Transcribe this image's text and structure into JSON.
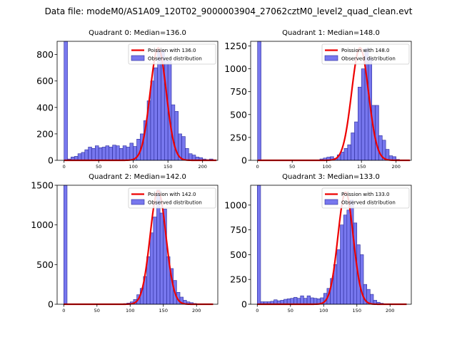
{
  "figure": {
    "suptitle": "Data file: modeM0/AS1A09_120T02_9000003904_27062cztM0_level2_quad_clean.evt"
  },
  "style": {
    "bar_fill": "#7777ee",
    "bar_edge": "#2a2a9a",
    "fit_color": "#ee0000"
  },
  "chart_data": [
    {
      "type": "bar",
      "title": "Quadrant 0: Median=136.0",
      "bin_width": 5,
      "xlim": [
        -10,
        222
      ],
      "ylim": [
        0,
        900
      ],
      "xticks": [
        0,
        50,
        100,
        150,
        200
      ],
      "yticks": [
        0,
        200,
        400,
        600,
        800
      ],
      "legend_position": "top-right",
      "legend": [
        "Poission with 136.0",
        "Observed distribution"
      ],
      "bins_left": [
        0,
        5,
        10,
        15,
        20,
        25,
        30,
        35,
        40,
        45,
        50,
        55,
        60,
        65,
        70,
        75,
        80,
        85,
        90,
        95,
        100,
        105,
        110,
        115,
        120,
        125,
        130,
        135,
        140,
        145,
        150,
        155,
        160,
        165,
        170,
        175,
        180,
        185,
        190,
        195,
        200,
        205,
        210,
        215
      ],
      "counts": [
        900,
        10,
        25,
        30,
        50,
        60,
        80,
        100,
        90,
        110,
        95,
        100,
        110,
        100,
        115,
        110,
        90,
        110,
        100,
        130,
        105,
        160,
        200,
        300,
        450,
        600,
        700,
        830,
        830,
        760,
        750,
        420,
        370,
        200,
        180,
        90,
        50,
        40,
        25,
        20,
        10,
        5,
        10,
        2
      ],
      "fit": {
        "label": "Poission with 136.0",
        "mean": 136.0,
        "peak": 850,
        "x_range": [
          0,
          220
        ]
      }
    },
    {
      "type": "bar",
      "title": "Quadrant 1: Median=148.0",
      "bin_width": 5,
      "xlim": [
        -10,
        222
      ],
      "ylim": [
        0,
        1300
      ],
      "xticks": [
        0,
        50,
        100,
        150,
        200
      ],
      "yticks": [
        0,
        250,
        500,
        750,
        1000,
        1250
      ],
      "legend_position": "top-right",
      "legend": [
        "Poission with 148.0",
        "Observed distribution"
      ],
      "bins_left": [
        0,
        5,
        10,
        15,
        20,
        25,
        30,
        35,
        40,
        45,
        50,
        55,
        60,
        65,
        70,
        75,
        80,
        85,
        90,
        95,
        100,
        105,
        110,
        115,
        120,
        125,
        130,
        135,
        140,
        145,
        150,
        155,
        160,
        165,
        170,
        175,
        180,
        185,
        190,
        195,
        200,
        205,
        210,
        215
      ],
      "counts": [
        1300,
        0,
        0,
        0,
        0,
        0,
        0,
        0,
        0,
        0,
        0,
        0,
        0,
        0,
        0,
        0,
        2,
        5,
        15,
        25,
        35,
        40,
        20,
        60,
        90,
        130,
        170,
        300,
        420,
        800,
        1000,
        1220,
        1120,
        600,
        600,
        270,
        220,
        120,
        50,
        40,
        10,
        5,
        3,
        1
      ],
      "fit": {
        "label": "Poission with 148.0",
        "mean": 148.0,
        "peak": 1230,
        "x_range": [
          0,
          220
        ]
      }
    },
    {
      "type": "bar",
      "title": "Quadrant 2: Median=142.0",
      "bin_width": 5,
      "xlim": [
        -10,
        232
      ],
      "ylim": [
        0,
        1500
      ],
      "xticks": [
        0,
        50,
        100,
        150,
        200
      ],
      "yticks": [
        0,
        500,
        1000,
        1500
      ],
      "legend_position": "top-right",
      "legend": [
        "Poission with 142.0",
        "Observed distribution"
      ],
      "bins_left": [
        0,
        5,
        10,
        15,
        20,
        25,
        30,
        35,
        40,
        45,
        50,
        55,
        60,
        65,
        70,
        75,
        80,
        85,
        90,
        95,
        100,
        105,
        110,
        115,
        120,
        125,
        130,
        135,
        140,
        145,
        150,
        155,
        160,
        165,
        170,
        175,
        180,
        185,
        190,
        195,
        200,
        205,
        210,
        215,
        220
      ],
      "counts": [
        1500,
        0,
        0,
        0,
        0,
        0,
        0,
        0,
        0,
        0,
        0,
        0,
        0,
        0,
        0,
        0,
        3,
        5,
        8,
        15,
        30,
        60,
        120,
        200,
        350,
        600,
        900,
        1100,
        1440,
        1150,
        1200,
        600,
        450,
        300,
        150,
        90,
        50,
        30,
        20,
        10,
        5,
        3,
        2,
        1,
        0
      ],
      "fit": {
        "label": "Poission with 142.0",
        "mean": 142.0,
        "peak": 1430,
        "x_range": [
          0,
          225
        ]
      }
    },
    {
      "type": "bar",
      "title": "Quadrant 3: Median=133.0",
      "bin_width": 5,
      "xlim": [
        -10,
        232
      ],
      "ylim": [
        0,
        1200
      ],
      "xticks": [
        0,
        50,
        100,
        150,
        200
      ],
      "yticks": [
        0,
        250,
        500,
        750,
        1000
      ],
      "legend_position": "top-right",
      "legend": [
        "Poission with 133.0",
        "Observed distribution"
      ],
      "bins_left": [
        0,
        5,
        10,
        15,
        20,
        25,
        30,
        35,
        40,
        45,
        50,
        55,
        60,
        65,
        70,
        75,
        80,
        85,
        90,
        95,
        100,
        105,
        110,
        115,
        120,
        125,
        130,
        135,
        140,
        145,
        150,
        155,
        160,
        165,
        170,
        175,
        180,
        185,
        190,
        195,
        200,
        205,
        210,
        215,
        220
      ],
      "counts": [
        1200,
        25,
        25,
        25,
        30,
        45,
        35,
        40,
        50,
        55,
        60,
        70,
        60,
        85,
        60,
        85,
        65,
        60,
        55,
        65,
        110,
        160,
        260,
        400,
        550,
        800,
        900,
        950,
        1050,
        820,
        600,
        500,
        200,
        150,
        100,
        40,
        20,
        10,
        5,
        3,
        2,
        1,
        0,
        0,
        0
      ],
      "fit": {
        "label": "Poission with 133.0",
        "mean": 133.0,
        "peak": 1130,
        "x_range": [
          0,
          225
        ]
      }
    }
  ]
}
